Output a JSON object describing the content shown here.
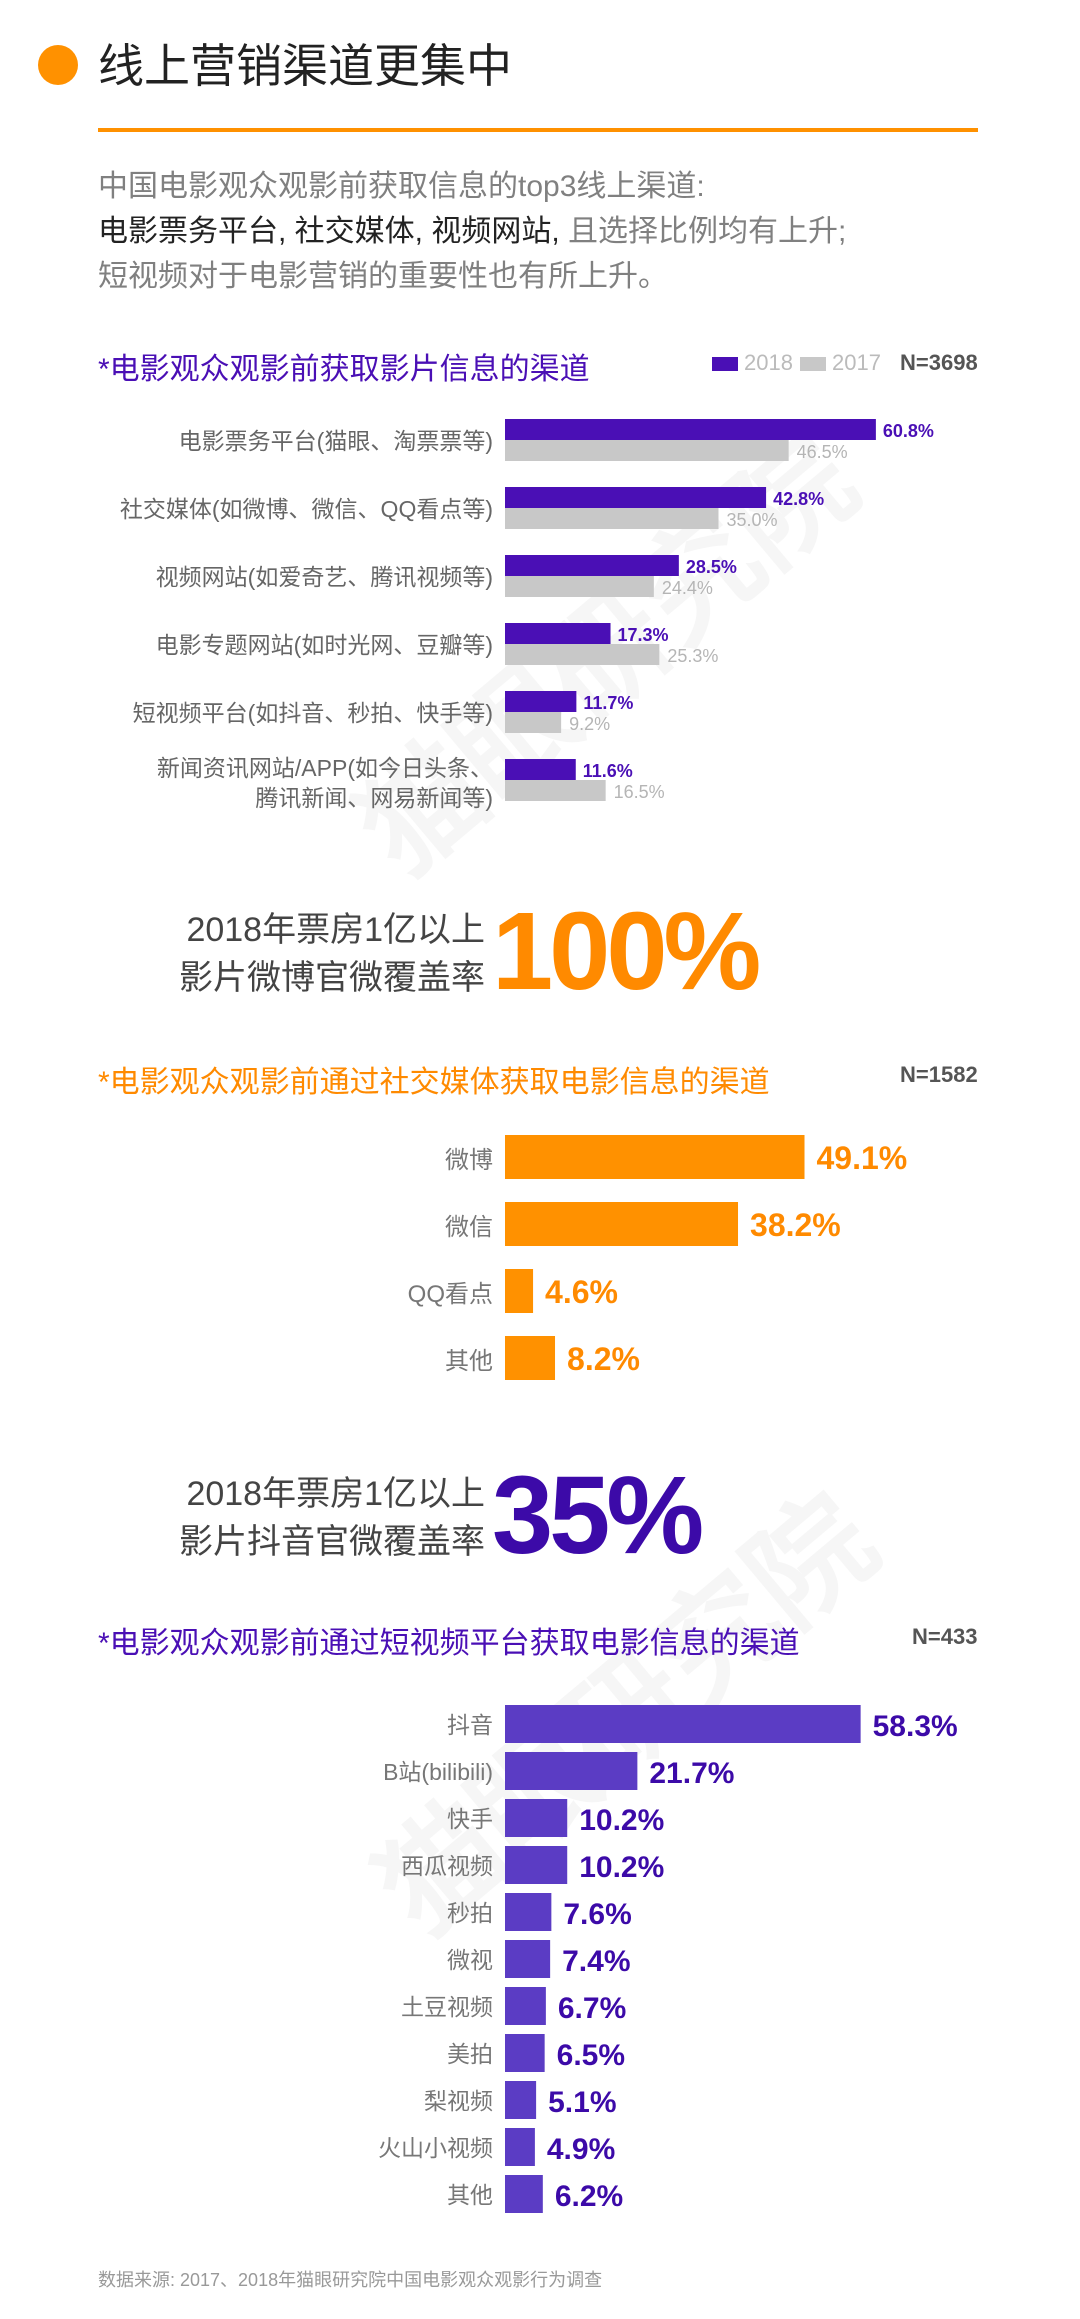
{
  "page": {
    "title": "线上营销渠道更集中",
    "intro_line1": "中国电影观众观影前获取信息的top3线上渠道:",
    "intro_line2_dark": "电影票务平台, 社交媒体, 视频网站, ",
    "intro_line2_grey": "且选择比例均有上升;",
    "intro_line3": "短视频对于电影营销的重要性也有所上升。",
    "footer": "数据来源: 2017、2018年猫眼研究院中国电影观众观影行为调查",
    "watermark": "猫眼研究院"
  },
  "colors": {
    "accent_orange": "#ff9100",
    "purple_2018": "#4a0fb5",
    "grey_2017": "#c8c8c8",
    "purple_short_video": "#5b3cc4"
  },
  "highlight1": {
    "label_line1": "2018年票房1亿以上",
    "label_line2": "影片微博官微覆盖率",
    "value": "100%"
  },
  "highlight2": {
    "label_line1": "2018年票房1亿以上",
    "label_line2": "影片抖音官微覆盖率",
    "value": "35%"
  },
  "chart_data": [
    {
      "type": "bar",
      "orientation": "horizontal",
      "title": "*电影观众观影前获取影片信息的渠道",
      "n_label": "N=3698",
      "legend": [
        "2018",
        "2017"
      ],
      "categories": [
        "电影票务平台(猫眼、淘票票等)",
        "社交媒体(如微博、微信、QQ看点等)",
        "视频网站(如爱奇艺、腾讯视频等)",
        "电影专题网站(如时光网、豆瓣等)",
        "短视频平台(如抖音、秒拍、快手等)",
        "新闻资讯网站/APP(如今日头条、\n腾讯新闻、网易新闻等)"
      ],
      "series": [
        {
          "name": "2018",
          "values": [
            60.8,
            42.8,
            28.5,
            17.3,
            11.7,
            11.6
          ],
          "labels": [
            "60.8%",
            "42.8%",
            "28.5%",
            "17.3%",
            "11.7%",
            "11.6%"
          ]
        },
        {
          "name": "2017",
          "values": [
            46.5,
            35.0,
            24.4,
            25.3,
            9.2,
            16.5
          ],
          "labels": [
            "46.5%",
            "35.0%",
            "24.4%",
            "25.3%",
            "9.2%",
            "16.5%"
          ]
        }
      ]
    },
    {
      "type": "bar",
      "orientation": "horizontal",
      "title": "*电影观众观影前通过社交媒体获取电影信息的渠道",
      "n_label": "N=1582",
      "categories": [
        "微博",
        "微信",
        "QQ看点",
        "其他"
      ],
      "values": [
        49.1,
        38.2,
        4.6,
        8.2
      ],
      "labels": [
        "49.1%",
        "38.2%",
        "4.6%",
        "8.2%"
      ]
    },
    {
      "type": "bar",
      "orientation": "horizontal",
      "title": "*电影观众观影前通过短视频平台获取电影信息的渠道",
      "n_label": "N=433",
      "categories": [
        "抖音",
        "B站(bilibili)",
        "快手",
        "西瓜视频",
        "秒拍",
        "微视",
        "土豆视频",
        "美拍",
        "梨视频",
        "火山小视频",
        "其他"
      ],
      "values": [
        58.3,
        21.7,
        10.2,
        10.2,
        7.6,
        7.4,
        6.7,
        6.5,
        5.1,
        4.9,
        6.2
      ],
      "labels": [
        "58.3%",
        "21.7%",
        "10.2%",
        "10.2%",
        "7.6%",
        "7.4%",
        "6.7%",
        "6.5%",
        "5.1%",
        "4.9%",
        "6.2%"
      ]
    }
  ]
}
